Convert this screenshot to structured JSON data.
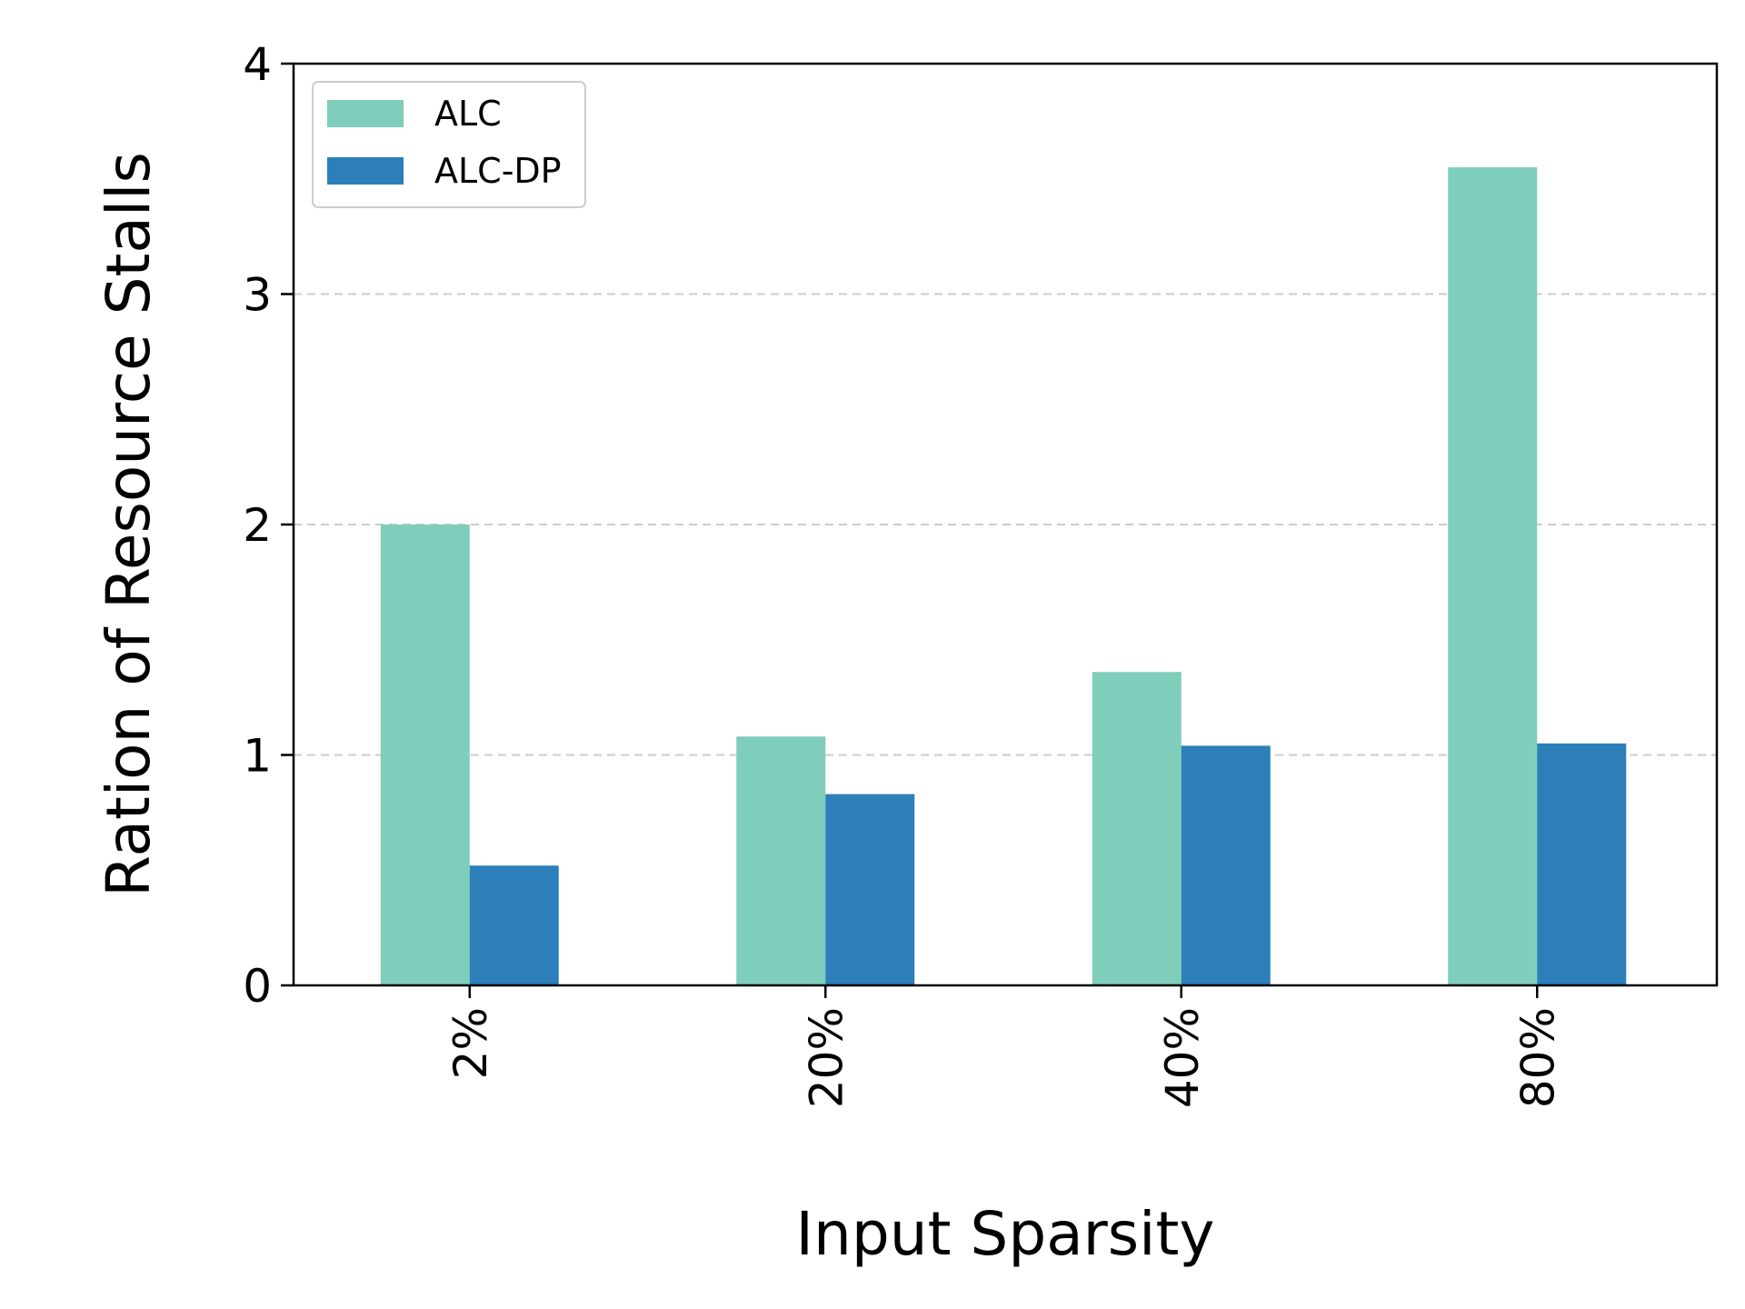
{
  "chart_data": {
    "type": "bar",
    "title": "",
    "xlabel": "Input Sparsity",
    "ylabel": "Ration of Resource Stalls",
    "categories": [
      "2%",
      "20%",
      "40%",
      "80%"
    ],
    "series": [
      {
        "name": "ALC",
        "values": [
          2.0,
          1.08,
          1.36,
          3.55
        ],
        "color": "#7fcdbb"
      },
      {
        "name": "ALC-DP",
        "values": [
          0.52,
          0.83,
          1.04,
          1.05
        ],
        "color": "#2c7fb8"
      }
    ],
    "ylim": [
      0,
      4
    ],
    "yticks": [
      "0",
      "1",
      "2",
      "3",
      "4"
    ],
    "grid": "y-dashed",
    "legend_position": "top-left",
    "x_tick_rotation": "vertical"
  }
}
